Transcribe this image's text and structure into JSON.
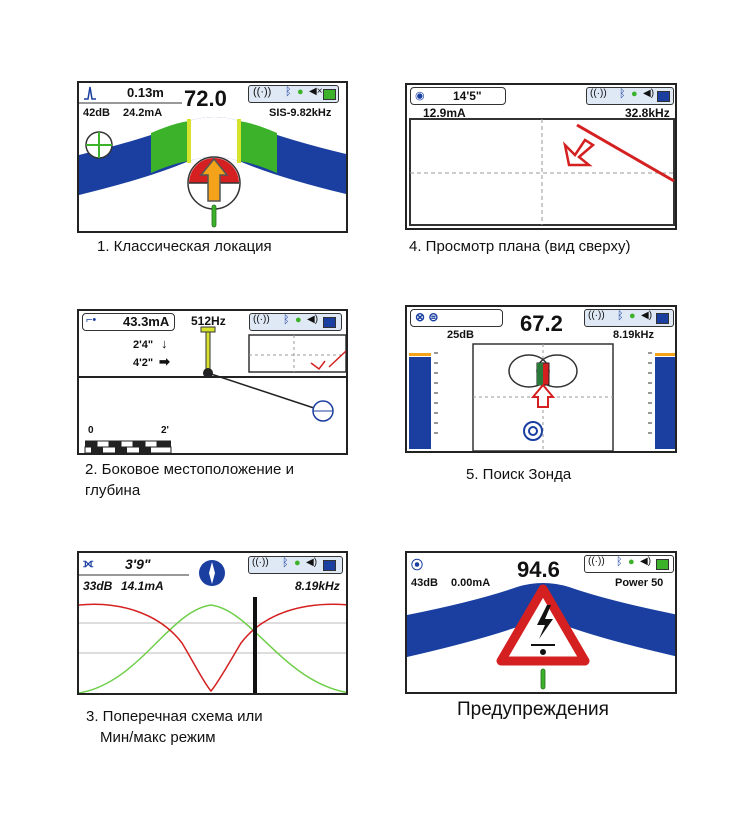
{
  "screens": {
    "classic": {
      "depth": "0.13m",
      "value": "72.0",
      "db": "42dB",
      "current": "24.2mA",
      "freq": "SIS-9.82kHz",
      "caption": "1. Классическая локация"
    },
    "plan": {
      "depth": "14'5\"",
      "current": "12.9mA",
      "freq": "32.8kHz",
      "caption": "4. Просмотр плана (вид сверху)"
    },
    "lateral": {
      "current": "43.3mA",
      "freq": "512Hz",
      "depth_a": "2'4\"",
      "depth_b": "4'2\"",
      "scale_start": "0",
      "scale_end": "2'",
      "caption_line1": "2. Боковое местоположение и",
      "caption_line2": "глубина"
    },
    "sonde": {
      "value": "67.2",
      "db": "25dB",
      "freq": "8.19kHz",
      "caption": "5. Поиск Зонда"
    },
    "cross": {
      "depth": "3'9\"",
      "db": "33dB",
      "current": "14.1mA",
      "freq": "8.19kHz",
      "caption_line1": "3. Поперечная схема или",
      "caption_line2": "Мин/макс режим"
    },
    "warning": {
      "value": "94.6",
      "db": "43dB",
      "current": "0.00mA",
      "power": "Power 50",
      "caption": "Предупреждения"
    }
  },
  "colors": {
    "blue": "#1a3fa0",
    "green": "#3cb22a",
    "red": "#d42020",
    "orange": "#f4a21a",
    "status_bg": "#dfe8f5"
  },
  "icons": [
    "signal-icon",
    "bluetooth-icon",
    "gps-icon",
    "speaker-icon",
    "battery-icon",
    "compass-icon"
  ]
}
